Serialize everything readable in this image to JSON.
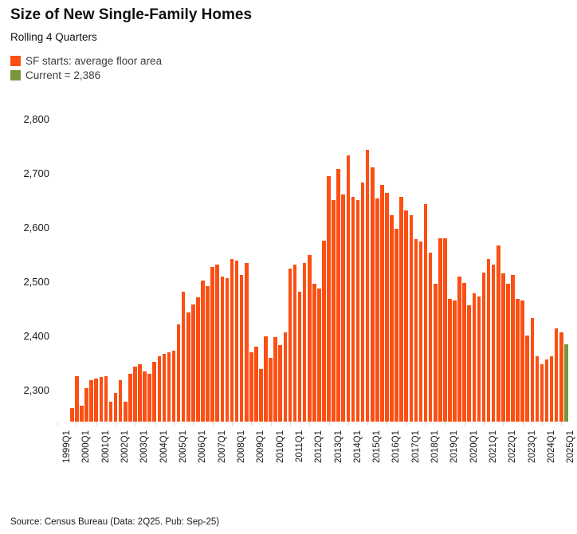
{
  "header": {
    "title": "Size of New Single-Family Homes",
    "subtitle": "Rolling 4 Quarters"
  },
  "legend": {
    "series_label": "SF starts: average floor area",
    "current_label": "Current = 2,386"
  },
  "footer": {
    "source": "Source: Census Bureau (Data: 2Q25. Pub: Sep-25)"
  },
  "colors": {
    "bar_orange": "#FB4F14",
    "bar_green": "#78963C"
  },
  "chart_data": {
    "type": "bar",
    "title": "Size of New Single-Family Homes",
    "subtitle": "Rolling 4 Quarters",
    "xlabel": "",
    "ylabel": "",
    "grid": false,
    "legend_position": "top-left",
    "ylim": [
      2243,
      2800
    ],
    "yticks": [
      2800,
      2700,
      2600,
      2500,
      2400,
      2300
    ],
    "ytick_labels": [
      "2,800",
      "2,700",
      "2,600",
      "2,500",
      "2,400",
      "2,300"
    ],
    "xtick_labels": [
      "1999Q1",
      "2000Q1",
      "2001Q1",
      "2002Q1",
      "2003Q1",
      "2004Q1",
      "2005Q1",
      "2006Q1",
      "2007Q1",
      "2008Q1",
      "2009Q1",
      "2010Q1",
      "2011Q1",
      "2012Q1",
      "2013Q1",
      "2014Q1",
      "2015Q1",
      "2016Q1",
      "2017Q1",
      "2018Q1",
      "2019Q1",
      "2020Q1",
      "2021Q1",
      "2022Q1",
      "2023Q1",
      "2024Q1",
      "2025Q1"
    ],
    "categories": [
      "1999Q4",
      "2000Q1",
      "2000Q2",
      "2000Q3",
      "2000Q4",
      "2001Q1",
      "2001Q2",
      "2001Q3",
      "2001Q4",
      "2002Q1",
      "2002Q2",
      "2002Q3",
      "2002Q4",
      "2003Q1",
      "2003Q2",
      "2003Q3",
      "2003Q4",
      "2004Q1",
      "2004Q2",
      "2004Q3",
      "2004Q4",
      "2005Q1",
      "2005Q2",
      "2005Q3",
      "2005Q4",
      "2006Q1",
      "2006Q2",
      "2006Q3",
      "2006Q4",
      "2007Q1",
      "2007Q2",
      "2007Q3",
      "2007Q4",
      "2008Q1",
      "2008Q2",
      "2008Q3",
      "2008Q4",
      "2009Q1",
      "2009Q2",
      "2009Q3",
      "2009Q4",
      "2010Q1",
      "2010Q2",
      "2010Q3",
      "2010Q4",
      "2011Q1",
      "2011Q2",
      "2011Q3",
      "2011Q4",
      "2012Q1",
      "2012Q2",
      "2012Q3",
      "2012Q4",
      "2013Q1",
      "2013Q2",
      "2013Q3",
      "2013Q4",
      "2014Q1",
      "2014Q2",
      "2014Q3",
      "2014Q4",
      "2015Q1",
      "2015Q2",
      "2015Q3",
      "2015Q4",
      "2016Q1",
      "2016Q2",
      "2016Q3",
      "2016Q4",
      "2017Q1",
      "2017Q2",
      "2017Q3",
      "2017Q4",
      "2018Q1",
      "2018Q2",
      "2018Q3",
      "2018Q4",
      "2019Q1",
      "2019Q2",
      "2019Q3",
      "2019Q4",
      "2020Q1",
      "2020Q2",
      "2020Q3",
      "2020Q4",
      "2021Q1",
      "2021Q2",
      "2021Q3",
      "2021Q4",
      "2022Q1",
      "2022Q2",
      "2022Q3",
      "2022Q4",
      "2023Q1",
      "2023Q2",
      "2023Q3",
      "2023Q4",
      "2024Q1",
      "2024Q2",
      "2024Q3",
      "2024Q4",
      "2025Q1",
      "2025Q2"
    ],
    "values": [
      2268,
      2326,
      2272,
      2305,
      2319,
      2322,
      2325,
      2326,
      2279,
      2295,
      2319,
      2279,
      2331,
      2344,
      2349,
      2336,
      2331,
      2353,
      2363,
      2368,
      2371,
      2373,
      2422,
      2483,
      2444,
      2459,
      2472,
      2503,
      2492,
      2528,
      2532,
      2510,
      2508,
      2542,
      2540,
      2513,
      2535,
      2371,
      2381,
      2339,
      2400,
      2360,
      2398,
      2384,
      2407,
      2525,
      2533,
      2483,
      2535,
      2550,
      2497,
      2488,
      2576,
      2695,
      2652,
      2709,
      2662,
      2734,
      2657,
      2652,
      2684,
      2744,
      2712,
      2655,
      2679,
      2665,
      2624,
      2598,
      2657,
      2633,
      2623,
      2579,
      2575,
      2644,
      2554,
      2497,
      2581,
      2581,
      2469,
      2466,
      2510,
      2498,
      2457,
      2480,
      2474,
      2518,
      2542,
      2532,
      2568,
      2516,
      2497,
      2513,
      2469,
      2466,
      2402,
      2434,
      2363,
      2349,
      2358,
      2363,
      2415,
      2407,
      2386
    ],
    "series": [
      {
        "name": "SF starts: average floor area",
        "color": "#FB4F14"
      },
      {
        "name": "Current = 2,386",
        "color": "#78963C"
      }
    ],
    "current_value": 2386,
    "current_index": 102
  }
}
